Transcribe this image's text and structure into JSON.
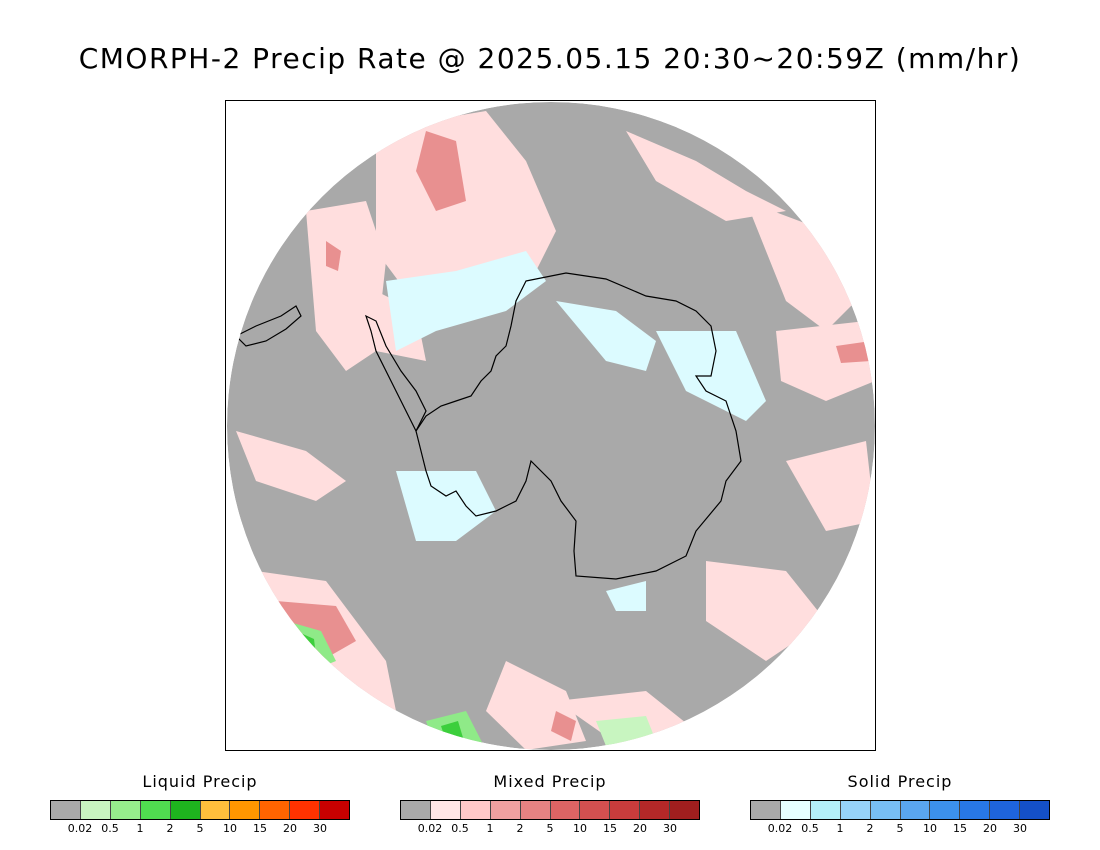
{
  "title": "CMORPH-2 Precip Rate @ 2025.05.15 20:30~20:59Z (mm/hr)",
  "map": {
    "projection": "south-polar-stereographic",
    "region": "Antarctica and Southern Ocean",
    "background_color": "#a9a9a9",
    "coastline_color": "#000000",
    "dominant_categories": [
      "no-data / <0.02 (gray)",
      "mixed precip light (pink)",
      "solid precip light (cyan)",
      "liquid precip (green)"
    ]
  },
  "legends": [
    {
      "id": "liquid",
      "title": "Liquid Precip",
      "colors": [
        "#a9a9a9",
        "#c8f5c0",
        "#96ee8c",
        "#50dc50",
        "#1eb41e",
        "#ffbe3c",
        "#ff9600",
        "#ff6400",
        "#ff3200",
        "#c80000"
      ],
      "ticks": [
        "0.02",
        "0.5",
        "1",
        "2",
        "5",
        "10",
        "15",
        "20",
        "30"
      ]
    },
    {
      "id": "mixed",
      "title": "Mixed Precip",
      "colors": [
        "#a9a9a9",
        "#ffe6e6",
        "#ffc8c8",
        "#f0a0a0",
        "#e68282",
        "#dc6464",
        "#d25050",
        "#c83c3c",
        "#b42828",
        "#a01e1e"
      ],
      "ticks": [
        "0.02",
        "0.5",
        "1",
        "2",
        "5",
        "10",
        "15",
        "20",
        "30"
      ]
    },
    {
      "id": "solid",
      "title": "Solid Precip",
      "colors": [
        "#a9a9a9",
        "#e6ffff",
        "#b4f0fa",
        "#96d2fa",
        "#78bef5",
        "#5aa5f0",
        "#3c91eb",
        "#2878e6",
        "#1e64dc",
        "#1450c8"
      ],
      "ticks": [
        "0.02",
        "0.5",
        "1",
        "2",
        "5",
        "10",
        "15",
        "20",
        "30"
      ]
    }
  ]
}
